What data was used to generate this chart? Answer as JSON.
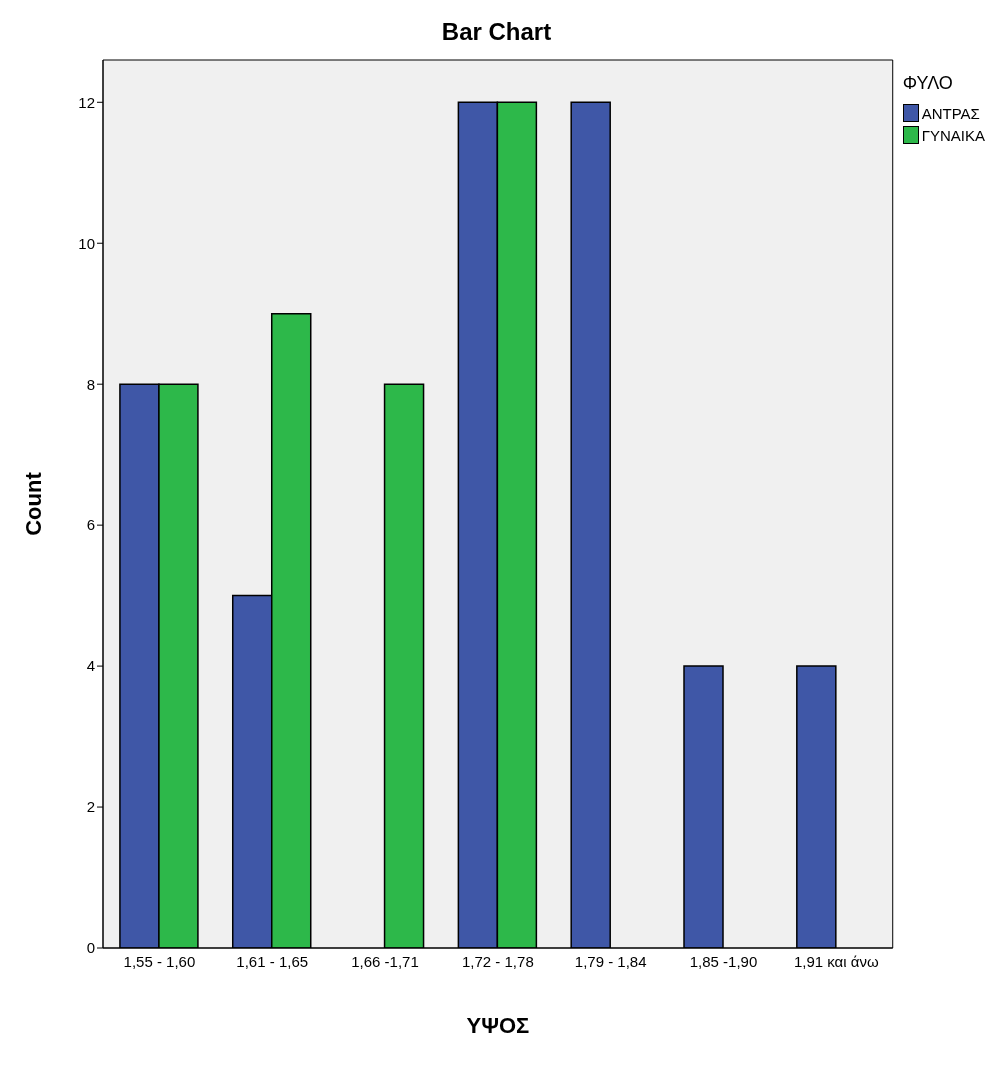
{
  "chart_data": {
    "type": "bar",
    "title": "Bar Chart",
    "xlabel": "ΥΨΟΣ",
    "ylabel": "Count",
    "legend_title": "ΦΥΛΟ",
    "categories": [
      "1,55 - 1,60",
      "1,61 - 1,65",
      "1,66 -1,71",
      "1,72 - 1,78",
      "1,79 - 1,84",
      "1,85 -1,90",
      "1,91 και άνω"
    ],
    "series": [
      {
        "name": "ΑΝΤΡΑΣ",
        "color": "#3f57a7",
        "values": [
          8,
          5,
          null,
          12,
          12,
          4,
          4
        ]
      },
      {
        "name": "ΓΥΝΑΙΚΑ",
        "color": "#2db84a",
        "values": [
          8,
          9,
          8,
          12,
          null,
          null,
          null
        ]
      }
    ],
    "ylim": [
      0,
      12.6
    ],
    "yticks": [
      0,
      2,
      4,
      6,
      8,
      10,
      12
    ],
    "legend": "top right"
  }
}
